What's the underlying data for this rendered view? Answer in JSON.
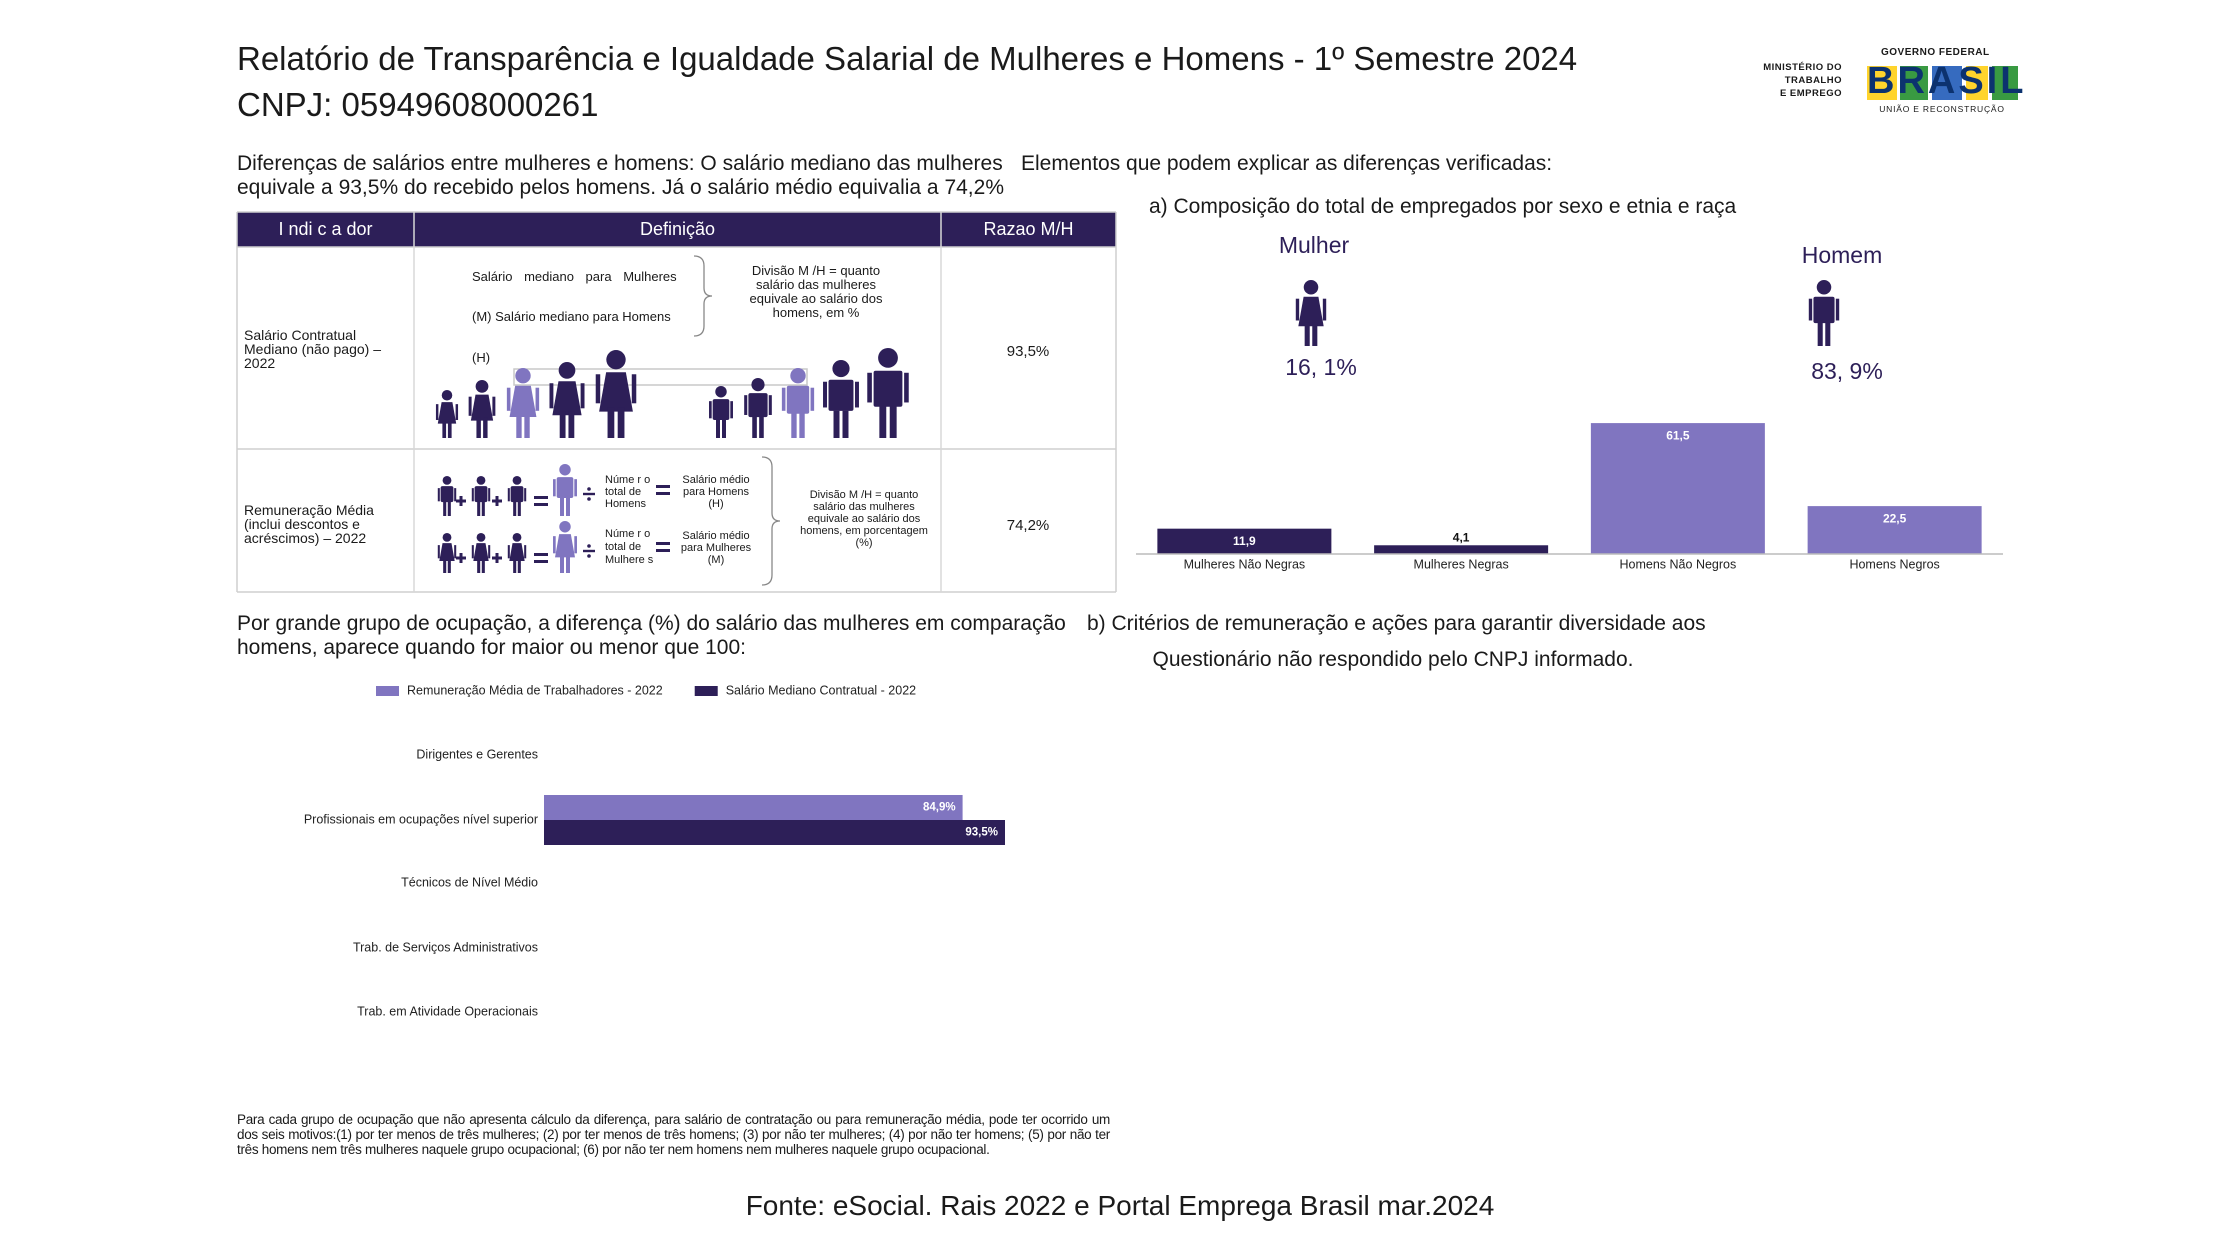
{
  "header": {
    "title": "Relatório de Transparência e Igualdade Salarial de Mulheres e Homens - 1º Semestre 2024",
    "cnpj": "CNPJ: 05949608000261"
  },
  "logo": {
    "ministry": [
      "MINISTÉRIO DO",
      "TRABALHO",
      "E EMPREGO"
    ],
    "government": "GOVERNO FEDERAL",
    "brand": "BRASIL",
    "slogan": "UNIÃO E RECONSTRUÇÃO"
  },
  "salary_section": {
    "text": [
      "Diferenças de salários entre mulheres e homens: O salário mediano das mulheres",
      "equivale a 93,5% do recebido pelos homens. Já o salário médio equivalia a 74,2%"
    ],
    "table": {
      "headers": [
        "I ndi c a dor",
        "Definição",
        "Razao M/H"
      ],
      "rows": [
        {
          "indicator": "Salário Contratual Mediano (não pago) – 2022",
          "definition": [
            "Salário mediano para Mulheres",
            "(M) Salário mediano para Homens",
            "(H)",
            "Divisão M /H = quanto salário das mulheres equivale ao salário dos homens, em %"
          ],
          "ratio": "93,5%"
        },
        {
          "indicator": "Remuneração Média (inclui descontos e acréscimos) – 2022",
          "definition": [
            "Núme r o total de Homens",
            "Salário médio para Homens (H)",
            "Núme r o total de Mulhere s",
            "Salário médio para Mulheres (M)",
            "Divisão M /H = quanto salário das mulheres equivale ao salário dos homens, em porcentagem (%)"
          ],
          "ratio": "74,2%"
        }
      ]
    }
  },
  "explain_section": {
    "title": "Elementos que podem explicar as diferenças verificadas:",
    "subtitle": "a) Composição do total de empregados por sexo e etnia e raça",
    "groups": [
      {
        "label": "Mulher",
        "share": "16, 1%"
      },
      {
        "label": "Homem",
        "share": "83, 9%"
      }
    ]
  },
  "chart_data": [
    {
      "type": "bar",
      "categories": [
        "Mulheres Não Negras",
        "Mulheres Negras",
        "Homens Não Negros",
        "Homens Negros"
      ],
      "values": [
        11.9,
        4.1,
        61.5,
        22.5
      ],
      "value_labels": [
        "11,9",
        "4,1",
        "61,5",
        "22,5"
      ],
      "colors": [
        "#2d1f58",
        "#2d1f58",
        "#8075c0",
        "#8075c0"
      ],
      "ylim": [
        0,
        70
      ]
    },
    {
      "type": "hbar",
      "categories": [
        "Dirigentes e Gerentes",
        "Profissionais em ocupações nível superior",
        "Técnicos de Nível Médio",
        "Trab. de Serviços Administrativos",
        "Trab. em Atividade Operacionais"
      ],
      "series": [
        {
          "name": "Remuneração Média de Trabalhadores - 2022",
          "color": "#8075c0",
          "values": [
            null,
            84.9,
            null,
            null,
            null
          ],
          "value_labels": [
            null,
            "84,9%",
            null,
            null,
            null
          ]
        },
        {
          "name": "Salário Mediano Contratual - 2022",
          "color": "#2d1f58",
          "values": [
            null,
            93.5,
            null,
            null,
            null
          ],
          "value_labels": [
            null,
            "93,5%",
            null,
            null,
            null
          ]
        }
      ],
      "xlim": [
        0,
        115
      ],
      "legend": "top"
    }
  ],
  "occupation_section": {
    "text": [
      "Por grande grupo de ocupação, a diferença (%) do salário das mulheres em comparação",
      "homens, aparece quando for maior ou menor que 100:"
    ],
    "note": "Para cada grupo de ocupação que não apresenta cálculo da diferença, para salário de contratação ou para remuneração média, pode ter ocorrido um dos seis motivos:(1) por ter menos de três mulheres; (2) por ter menos de três homens; (3) por não ter mulheres; (4) por não ter homens; (5) por não ter três homens nem três mulheres naquele grupo ocupacional; (6) por não ter nem homens nem mulheres naquele grupo ocupacional."
  },
  "criteria_section": {
    "title": "b) Critérios de remuneração e ações para garantir diversidade aos",
    "text": "Questionário não respondido pelo CNPJ informado."
  },
  "source": "Fonte: eSocial. Rais 2022 e Portal Emprega Brasil mar.2024"
}
